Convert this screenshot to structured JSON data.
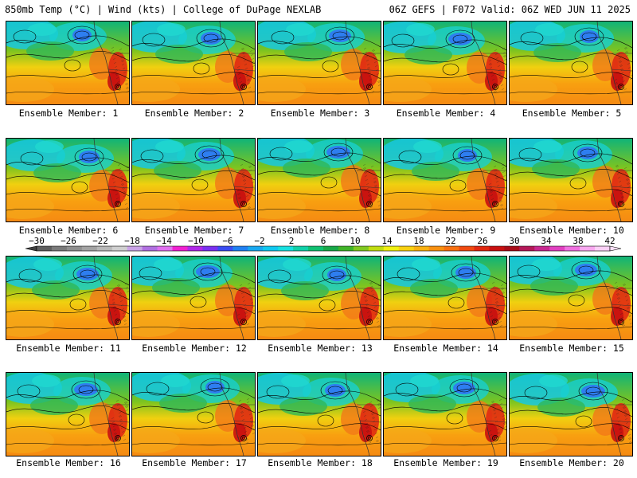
{
  "header": {
    "left": "850mb Temp (°C) | Wind (kts) | College of DuPage NEXLAB",
    "right": "06Z GEFS | F072 Valid: 06Z WED JUN 11 2025"
  },
  "panels": [
    {
      "label": "Ensemble Member: 1"
    },
    {
      "label": "Ensemble Member: 2"
    },
    {
      "label": "Ensemble Member: 3"
    },
    {
      "label": "Ensemble Member: 4"
    },
    {
      "label": "Ensemble Member: 5"
    },
    {
      "label": "Ensemble Member: 6"
    },
    {
      "label": "Ensemble Member: 7"
    },
    {
      "label": "Ensemble Member: 8"
    },
    {
      "label": "Ensemble Member: 9"
    },
    {
      "label": "Ensemble Member: 10"
    },
    {
      "label": "Ensemble Member: 11"
    },
    {
      "label": "Ensemble Member: 12"
    },
    {
      "label": "Ensemble Member: 13"
    },
    {
      "label": "Ensemble Member: 14"
    },
    {
      "label": "Ensemble Member: 15"
    },
    {
      "label": "Ensemble Member: 16"
    },
    {
      "label": "Ensemble Member: 17"
    },
    {
      "label": "Ensemble Member: 18"
    },
    {
      "label": "Ensemble Member: 19"
    },
    {
      "label": "Ensemble Member: 20"
    }
  ],
  "colorbar": {
    "ticks": [
      "−30",
      "−26",
      "−22",
      "−18",
      "−14",
      "−10",
      "−6",
      "−2",
      "2",
      "6",
      "10",
      "14",
      "18",
      "22",
      "26",
      "30",
      "34",
      "38",
      "42"
    ],
    "colors": [
      "#5e5e5e",
      "#7a7a7a",
      "#8f8f8f",
      "#a3a3a3",
      "#b8b8b8",
      "#cfcfcf",
      "#c9a2e6",
      "#b06fe0",
      "#e070f0",
      "#f020d0",
      "#b028e8",
      "#7a30f0",
      "#3a4cf2",
      "#2080f2",
      "#18a8f0",
      "#10c8f0",
      "#18e0e0",
      "#10d0a8",
      "#10c070",
      "#18a848",
      "#40b428",
      "#80c820",
      "#c0dc10",
      "#f0f010",
      "#f8d010",
      "#f8b010",
      "#f89010",
      "#f87010",
      "#f04a10",
      "#e02810",
      "#c81010",
      "#a80c18",
      "#b41858",
      "#c82890",
      "#e040c0",
      "#f070e0",
      "#f8a8f0",
      "#fad0f6"
    ]
  }
}
